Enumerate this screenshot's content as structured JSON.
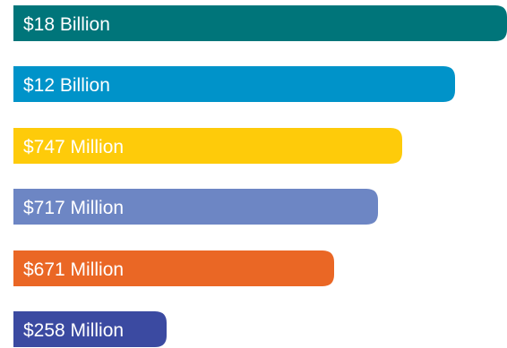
{
  "chart_data": {
    "type": "bar",
    "orientation": "horizontal",
    "title": "",
    "xlabel": "",
    "ylabel": "",
    "grid": false,
    "legend": "none",
    "categories": [
      "$18 Billion",
      "$12 Billion",
      "$747 Million",
      "$717 Million",
      "$671 Million",
      "$258 Million"
    ],
    "bars": [
      {
        "label": "$18 Billion",
        "color": "#00757a"
      },
      {
        "label": "$12 Billion",
        "color": "#0093c9"
      },
      {
        "label": "$747 Million",
        "color": "#fecb0a"
      },
      {
        "label": "$717 Million",
        "color": "#6d86c4"
      },
      {
        "label": "$671 Million",
        "color": "#ea6725"
      },
      {
        "label": "$258 Million",
        "color": "#3b4aa1"
      }
    ]
  }
}
